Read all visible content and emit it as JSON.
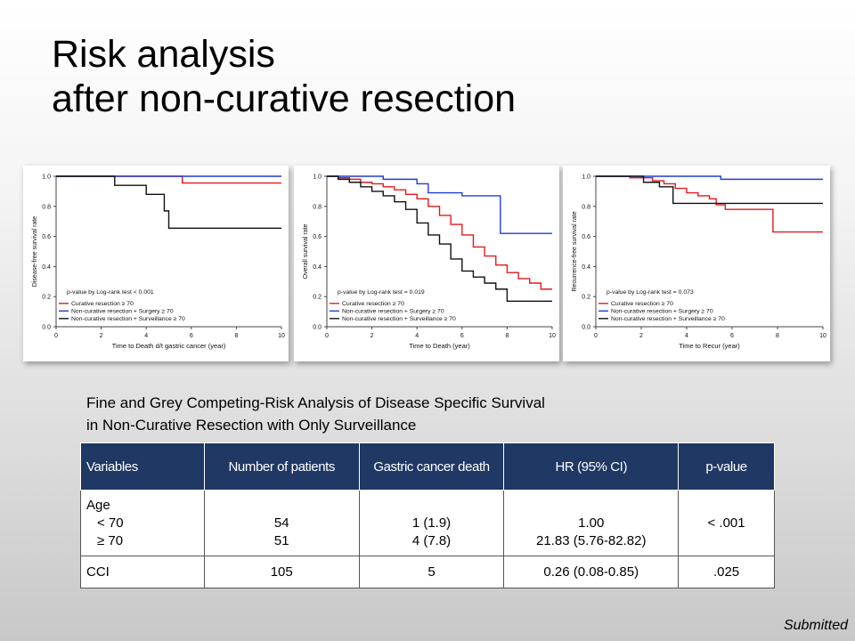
{
  "title": {
    "line1": "Risk analysis",
    "line2": "after non-curative resection"
  },
  "chart_data": [
    {
      "type": "line",
      "xlabel": "Time to Death d/t gastric cancer (year)",
      "ylabel": "Disease-free survival rate",
      "xlim": [
        0,
        10
      ],
      "ylim": [
        0,
        1
      ],
      "xticks": [
        "0",
        "2",
        "4",
        "6",
        "8",
        "10"
      ],
      "yticks": [
        "0.0",
        "0.2",
        "0.4",
        "0.6",
        "0.8",
        "1.0"
      ],
      "annotation": "p-value by Log-rank test < 0.001",
      "legend_position": "bottom-left",
      "series": [
        {
          "name": "Curative resection ≥ 70",
          "color": "#e31a1c",
          "step": [
            [
              0,
              1.0
            ],
            [
              5.6,
              1.0
            ],
            [
              5.6,
              0.955
            ],
            [
              10,
              0.955
            ]
          ]
        },
        {
          "name": "Non-curative resection + Surgery ≥ 70",
          "color": "#1f3fd6",
          "step": [
            [
              0,
              1.0
            ],
            [
              10,
              1.0
            ]
          ]
        },
        {
          "name": "Non-curative resection + Surveillance ≥ 70",
          "color": "#111111",
          "step": [
            [
              0,
              1.0
            ],
            [
              2.6,
              1.0
            ],
            [
              2.6,
              0.94
            ],
            [
              4.0,
              0.94
            ],
            [
              4.0,
              0.88
            ],
            [
              4.8,
              0.88
            ],
            [
              4.8,
              0.77
            ],
            [
              5.0,
              0.77
            ],
            [
              5.0,
              0.655
            ],
            [
              10,
              0.655
            ]
          ]
        }
      ]
    },
    {
      "type": "line",
      "xlabel": "Time to Death (year)",
      "ylabel": "Overall survival rate",
      "xlim": [
        0,
        10
      ],
      "ylim": [
        0,
        1
      ],
      "xticks": [
        "0",
        "2",
        "4",
        "6",
        "8",
        "10"
      ],
      "yticks": [
        "0.0",
        "0.2",
        "0.4",
        "0.6",
        "0.8",
        "1.0"
      ],
      "annotation": "p-value by Log-rank test = 0.019",
      "legend_position": "bottom-left",
      "series": [
        {
          "name": "Curative resection ≥ 70",
          "color": "#e31a1c",
          "step": [
            [
              0,
              1.0
            ],
            [
              0.5,
              0.99
            ],
            [
              1,
              0.98
            ],
            [
              1.5,
              0.96
            ],
            [
              2,
              0.95
            ],
            [
              2.5,
              0.93
            ],
            [
              3,
              0.91
            ],
            [
              3.5,
              0.88
            ],
            [
              4,
              0.85
            ],
            [
              4.5,
              0.8
            ],
            [
              5,
              0.74
            ],
            [
              5.5,
              0.68
            ],
            [
              6,
              0.61
            ],
            [
              6.5,
              0.53
            ],
            [
              7,
              0.47
            ],
            [
              7.5,
              0.41
            ],
            [
              8,
              0.36
            ],
            [
              8.5,
              0.32
            ],
            [
              9,
              0.29
            ],
            [
              9.5,
              0.25
            ],
            [
              10,
              0.25
            ]
          ]
        },
        {
          "name": "Non-curative resection + Surgery ≥ 70",
          "color": "#1f3fd6",
          "step": [
            [
              0,
              1.0
            ],
            [
              2.5,
              0.98
            ],
            [
              4.0,
              0.95
            ],
            [
              4.5,
              0.89
            ],
            [
              6.0,
              0.89
            ],
            [
              6.0,
              0.87
            ],
            [
              7.7,
              0.87
            ],
            [
              7.7,
              0.62
            ],
            [
              10,
              0.62
            ]
          ]
        },
        {
          "name": "Non-curative resection + Surveillance ≥ 70",
          "color": "#111111",
          "step": [
            [
              0,
              1.0
            ],
            [
              0.5,
              0.98
            ],
            [
              1,
              0.96
            ],
            [
              1.5,
              0.93
            ],
            [
              2,
              0.9
            ],
            [
              2.5,
              0.87
            ],
            [
              3,
              0.83
            ],
            [
              3.5,
              0.78
            ],
            [
              4,
              0.69
            ],
            [
              4.5,
              0.61
            ],
            [
              5,
              0.55
            ],
            [
              5.5,
              0.45
            ],
            [
              6,
              0.37
            ],
            [
              6.5,
              0.33
            ],
            [
              7,
              0.29
            ],
            [
              7.5,
              0.25
            ],
            [
              8,
              0.17
            ],
            [
              10,
              0.17
            ]
          ]
        }
      ]
    },
    {
      "type": "line",
      "xlabel": "Time to Recur (year)",
      "ylabel": "Recurrence-free survival rate",
      "xlim": [
        0,
        10
      ],
      "ylim": [
        0,
        1
      ],
      "xticks": [
        "0",
        "2",
        "4",
        "6",
        "8",
        "10"
      ],
      "yticks": [
        "0.0",
        "0.2",
        "0.4",
        "0.6",
        "0.8",
        "1.0"
      ],
      "annotation": "p-value by Log-rank test = 0.073",
      "legend_position": "bottom-left",
      "series": [
        {
          "name": "Curative resection ≥ 70",
          "color": "#e31a1c",
          "step": [
            [
              0,
              1.0
            ],
            [
              1.5,
              0.99
            ],
            [
              2.5,
              0.97
            ],
            [
              3.0,
              0.95
            ],
            [
              3.5,
              0.92
            ],
            [
              4.0,
              0.89
            ],
            [
              4.5,
              0.87
            ],
            [
              5.0,
              0.85
            ],
            [
              5.3,
              0.81
            ],
            [
              5.7,
              0.78
            ],
            [
              7.8,
              0.78
            ],
            [
              7.8,
              0.63
            ],
            [
              10,
              0.63
            ]
          ]
        },
        {
          "name": "Non-curative resection + Surgery ≥ 70",
          "color": "#1f3fd6",
          "step": [
            [
              0,
              1.0
            ],
            [
              5.5,
              1.0
            ],
            [
              5.5,
              0.98
            ],
            [
              10,
              0.98
            ]
          ]
        },
        {
          "name": "Non-curative resection + Surveillance ≥ 70",
          "color": "#111111",
          "step": [
            [
              0,
              1.0
            ],
            [
              2.1,
              1.0
            ],
            [
              2.1,
              0.96
            ],
            [
              2.8,
              0.96
            ],
            [
              2.8,
              0.93
            ],
            [
              3.4,
              0.93
            ],
            [
              3.4,
              0.82
            ],
            [
              10,
              0.82
            ]
          ]
        }
      ]
    }
  ],
  "subtitle": {
    "line1": "Fine and Grey Competing-Risk Analysis of Disease Specific Survival",
    "line2": "in Non-Curative Resection with Only Surveillance"
  },
  "table": {
    "headers": [
      "Variables",
      "Number of patients",
      "Gastric cancer death",
      "HR (95% CI)",
      "p-value"
    ],
    "age": {
      "label": "Age",
      "sub1": "< 70",
      "sub2": "≥ 70",
      "n1": "54",
      "n2": "51",
      "d1": "1 (1.9)",
      "d2": "4 (7.8)",
      "hr1": "1.00",
      "hr2": "21.83 (5.76-82.82)",
      "p": "< .001"
    },
    "cci": {
      "label": "CCI",
      "n": "105",
      "death": "5",
      "hr": "0.26 (0.08-0.85)",
      "p": ".025"
    }
  },
  "footer": {
    "submitted": "Submitted"
  }
}
